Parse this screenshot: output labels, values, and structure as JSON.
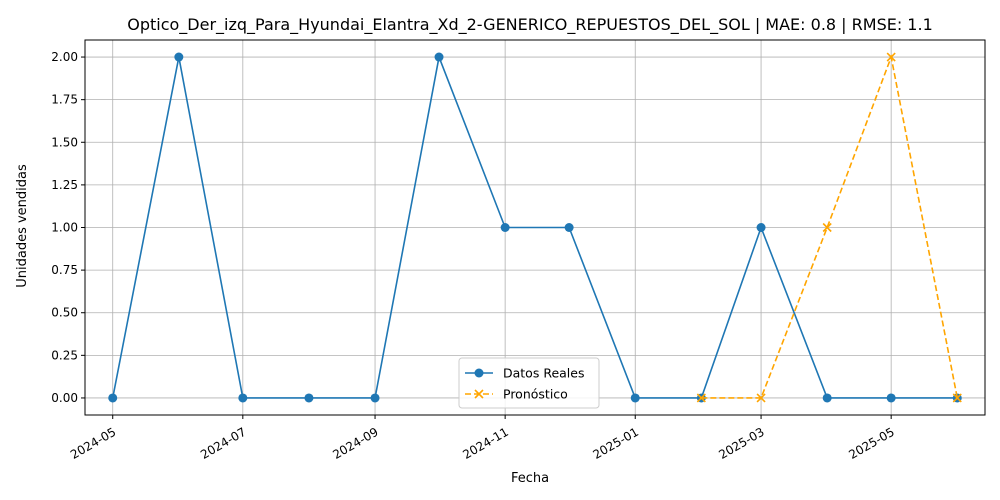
{
  "chart_data": {
    "type": "line",
    "title": "Optico_Der_izq_Para_Hyundai_Elantra_Xd_2-GENERICO_REPUESTOS_DEL_SOL | MAE: 0.8 | RMSE: 1.1",
    "xlabel": "Fecha",
    "ylabel": "Unidades vendidas",
    "xlim": [
      "2024-04-18",
      "2025-06-14"
    ],
    "ylim": [
      -0.1,
      2.1
    ],
    "grid": true,
    "legend_position": "lower-center",
    "x_ticks": [
      "2024-05-01",
      "2024-07-01",
      "2024-09-01",
      "2024-11-01",
      "2025-01-01",
      "2025-03-01",
      "2025-05-01"
    ],
    "x_tick_labels": [
      "2024-05",
      "2024-07",
      "2024-09",
      "2024-11",
      "2025-01",
      "2025-03",
      "2025-05"
    ],
    "y_ticks": [
      0,
      0.25,
      0.5,
      0.75,
      1.0,
      1.25,
      1.5,
      1.75,
      2.0
    ],
    "y_tick_labels": [
      "0.00",
      "0.25",
      "0.50",
      "0.75",
      "1.00",
      "1.25",
      "1.50",
      "1.75",
      "2.00"
    ],
    "series": [
      {
        "name": "Datos Reales",
        "color": "#1f77b4",
        "line_style": "solid",
        "marker": "circle",
        "x": [
          "2024-05-01",
          "2024-06-01",
          "2024-07-01",
          "2024-08-01",
          "2024-09-01",
          "2024-10-01",
          "2024-11-01",
          "2024-12-01",
          "2025-01-01",
          "2025-02-01",
          "2025-03-01",
          "2025-04-01",
          "2025-05-01",
          "2025-06-01"
        ],
        "values": [
          0,
          2,
          0,
          0,
          0,
          2,
          1,
          1,
          0,
          0,
          1,
          0,
          0,
          0
        ]
      },
      {
        "name": "Pronóstico",
        "color": "#ffa500",
        "line_style": "dashed",
        "marker": "x",
        "x": [
          "2025-02-01",
          "2025-03-01",
          "2025-04-01",
          "2025-05-01",
          "2025-06-01"
        ],
        "values": [
          0,
          0,
          1,
          2,
          0
        ]
      }
    ]
  }
}
